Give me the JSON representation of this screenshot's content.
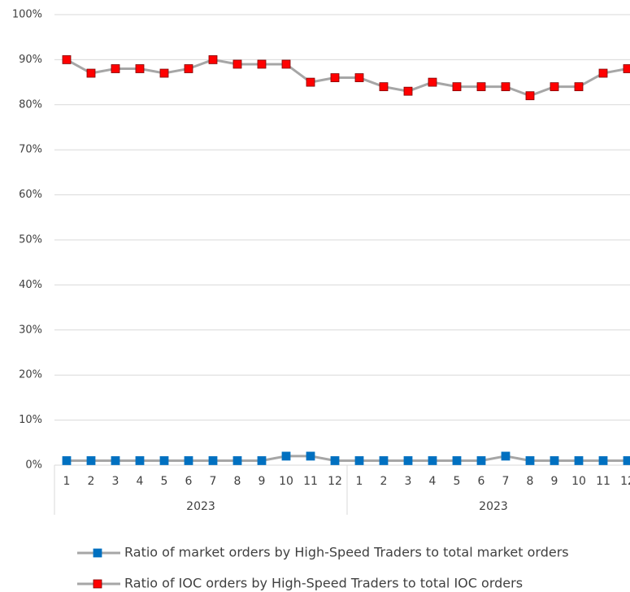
{
  "chart_data": {
    "type": "line",
    "categories": [
      "1",
      "2",
      "3",
      "4",
      "5",
      "6",
      "7",
      "8",
      "9",
      "10",
      "11",
      "12",
      "1",
      "2",
      "3",
      "4",
      "5",
      "6",
      "7",
      "8",
      "9",
      "10",
      "11",
      "12"
    ],
    "category_groups": [
      "2023",
      "2023"
    ],
    "series": [
      {
        "name": "Ratio of market orders by High-Speed Traders to total market orders",
        "color": "#0070c0",
        "line_color": "#a6a6a6",
        "values": [
          1,
          1,
          1,
          1,
          1,
          1,
          1,
          1,
          1,
          2,
          2,
          1,
          1,
          1,
          1,
          1,
          1,
          1,
          2,
          1,
          1,
          1,
          1,
          1
        ]
      },
      {
        "name": "Ratio of IOC orders by High-Speed Traders to total IOC orders",
        "color": "#ff0000",
        "line_color": "#a6a6a6",
        "values": [
          90,
          87,
          88,
          88,
          87,
          88,
          90,
          89,
          89,
          89,
          85,
          86,
          86,
          84,
          83,
          85,
          84,
          84,
          84,
          82,
          84,
          84,
          87,
          88
        ]
      }
    ],
    "ylim": [
      0,
      100
    ],
    "yticks": [
      {
        "value": 0,
        "label": "0%"
      },
      {
        "value": 10,
        "label": "10%"
      },
      {
        "value": 20,
        "label": "20%"
      },
      {
        "value": 30,
        "label": "30%"
      },
      {
        "value": 40,
        "label": "40%"
      },
      {
        "value": 50,
        "label": "50%"
      },
      {
        "value": 60,
        "label": "60%"
      },
      {
        "value": 70,
        "label": "70%"
      },
      {
        "value": 80,
        "label": "80%"
      },
      {
        "value": 90,
        "label": "90%"
      },
      {
        "value": 100,
        "label": "100%"
      }
    ],
    "grid": true,
    "legend": "bottom"
  }
}
